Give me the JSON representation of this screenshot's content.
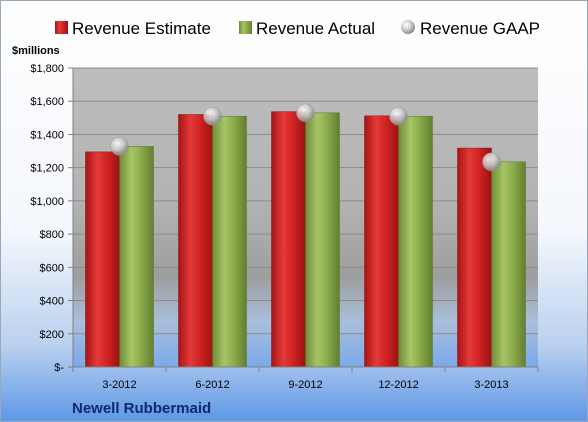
{
  "chart_data": {
    "type": "bar",
    "unit_label": "$millions",
    "company": "Newell Rubbermaid",
    "categories": [
      "3-2012",
      "6-2012",
      "9-2012",
      "12-2012",
      "3-2013"
    ],
    "series": [
      {
        "name": "Revenue Estimate",
        "type": "bar",
        "color": "#d42525",
        "values": [
          1295,
          1520,
          1537,
          1512,
          1318
        ]
      },
      {
        "name": "Revenue Actual",
        "type": "bar",
        "color": "#8faf4e",
        "values": [
          1328,
          1510,
          1530,
          1510,
          1235
        ]
      },
      {
        "name": "Revenue GAAP",
        "type": "marker",
        "color": "#b8b8b8",
        "values": [
          1328,
          1510,
          1530,
          1510,
          1235
        ]
      }
    ],
    "ylim": [
      0,
      1800
    ],
    "y_ticks": [
      {
        "value": 0,
        "label": "$-"
      },
      {
        "value": 200,
        "label": "$200"
      },
      {
        "value": 400,
        "label": "$400"
      },
      {
        "value": 600,
        "label": "$600"
      },
      {
        "value": 800,
        "label": "$800"
      },
      {
        "value": 1000,
        "label": "$1,000"
      },
      {
        "value": 1200,
        "label": "$1,200"
      },
      {
        "value": 1400,
        "label": "$1,400"
      },
      {
        "value": 1600,
        "label": "$1,600"
      },
      {
        "value": 1800,
        "label": "$1,800"
      }
    ],
    "grid": true,
    "legend": "top"
  }
}
